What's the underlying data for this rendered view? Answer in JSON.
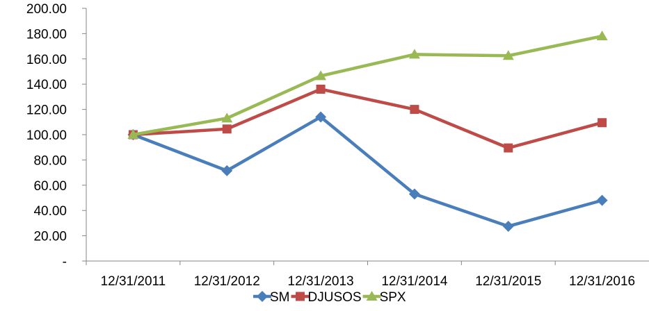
{
  "chart_data": {
    "type": "line",
    "categories": [
      "12/31/2011",
      "12/31/2012",
      "12/31/2013",
      "12/31/2014",
      "12/31/2015",
      "12/31/2016"
    ],
    "series": [
      {
        "name": "SM",
        "values": [
          100,
          71.5,
          114,
          53,
          27.5,
          48
        ],
        "color": "#4a7ebb",
        "marker": "diamond"
      },
      {
        "name": "DJUSOS",
        "values": [
          100,
          104.5,
          136,
          120,
          89.5,
          109.5
        ],
        "color": "#be4b48",
        "marker": "square"
      },
      {
        "name": "SPX",
        "values": [
          100,
          113,
          146.5,
          163.5,
          162.5,
          178
        ],
        "color": "#98b954",
        "marker": "triangle"
      }
    ],
    "ylim": [
      0,
      200
    ],
    "y_ticks": [
      {
        "value": 200,
        "label": "200.00"
      },
      {
        "value": 180,
        "label": "180.00"
      },
      {
        "value": 160,
        "label": "160.00"
      },
      {
        "value": 140,
        "label": "140.00"
      },
      {
        "value": 120,
        "label": "120.00"
      },
      {
        "value": 100,
        "label": "100.00"
      },
      {
        "value": 80,
        "label": "80.00"
      },
      {
        "value": 60,
        "label": "60.00"
      },
      {
        "value": 40,
        "label": "40.00"
      },
      {
        "value": 20,
        "label": "20.00"
      },
      {
        "value": 0,
        "label": "-"
      }
    ],
    "title": "",
    "xlabel": "",
    "ylabel": "",
    "grid": false,
    "legend": "bottom"
  }
}
